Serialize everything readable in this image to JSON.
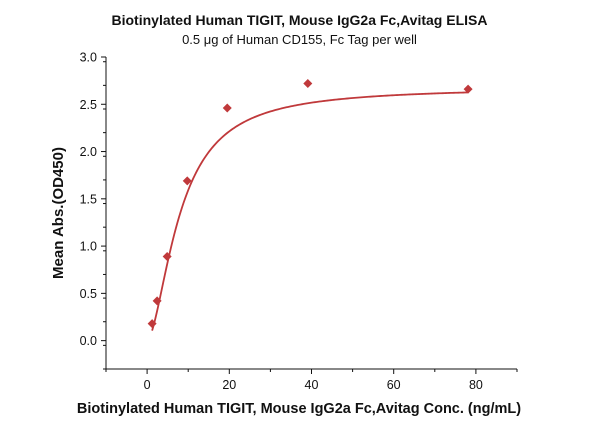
{
  "chart_data": {
    "type": "scatter",
    "title": "Biotinylated Human TIGIT, Mouse IgG2a Fc,Avitag ELISA",
    "subtitle": "0.5 μg of Human CD155, Fc Tag per well",
    "xlabel": "Biotinylated Human TIGIT, Mouse IgG2a Fc,Avitag Conc. (ng/mL)",
    "ylabel": "Mean Abs.(OD450)",
    "xlim": [
      -10,
      90
    ],
    "ylim": [
      -0.3,
      3.0
    ],
    "xticks": [
      0,
      20,
      40,
      60,
      80
    ],
    "yticks": [
      0.0,
      0.5,
      1.0,
      1.5,
      2.0,
      2.5,
      3.0
    ],
    "xtick_labels": [
      "0",
      "20",
      "40",
      "60",
      "80"
    ],
    "ytick_labels": [
      "0.0",
      "0.5",
      "1.0",
      "1.5",
      "2.0",
      "2.5",
      "3.0"
    ],
    "grid": false,
    "color": "#c0393b",
    "series": [
      {
        "marker": "diamond",
        "x": [
          1.22,
          2.44,
          4.88,
          9.77,
          19.5,
          39.1,
          78.1
        ],
        "y": [
          0.18,
          0.42,
          0.89,
          1.69,
          2.46,
          2.72,
          2.66
        ]
      }
    ],
    "fit": {
      "type": "4PL",
      "bottom": 0.0,
      "top": 2.68,
      "ec50": 8.0,
      "hill": 1.7
    }
  }
}
